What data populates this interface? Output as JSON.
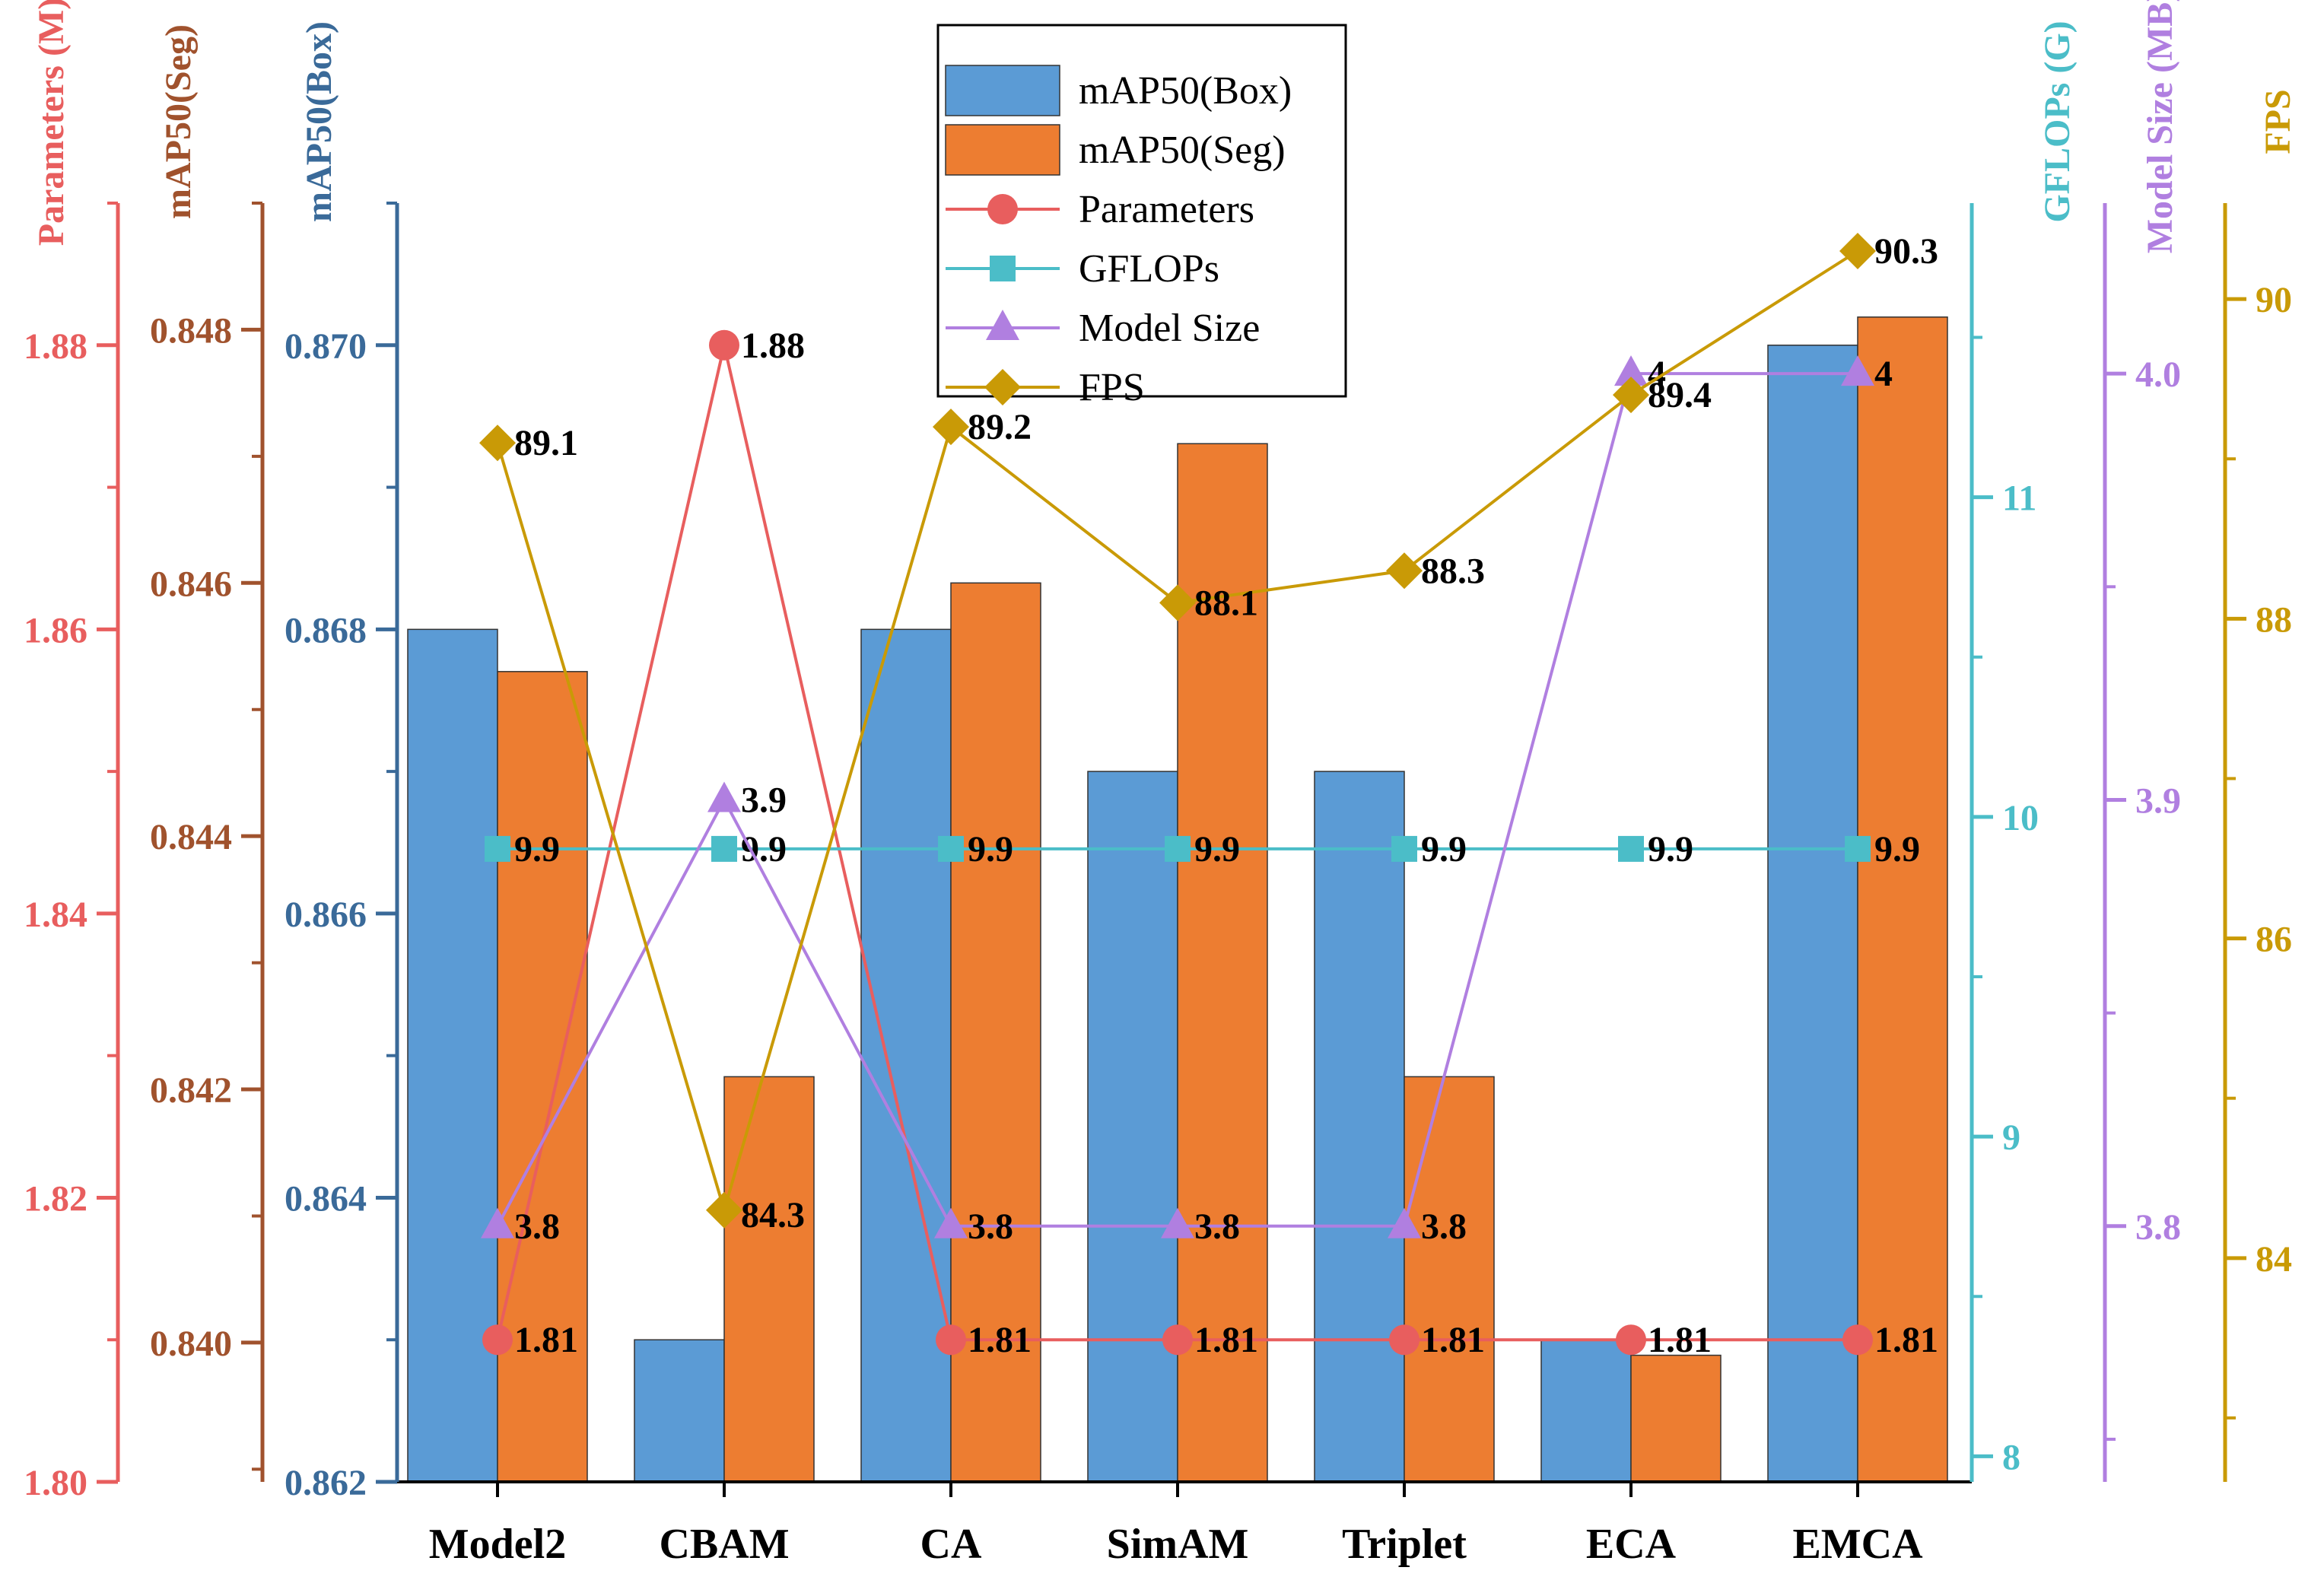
{
  "chart_data": {
    "type": "bar",
    "categories": [
      "Model2",
      "CBAM",
      "CA",
      "SimAM",
      "Triplet",
      "ECA",
      "EMCA"
    ],
    "bar_series": [
      {
        "name": "mAP50(Box)",
        "axis": "box",
        "color": "#5B9BD5",
        "values": [
          0.868,
          0.863,
          0.868,
          0.867,
          0.867,
          0.863,
          0.87
        ]
      },
      {
        "name": "mAP50(Seg)",
        "axis": "seg",
        "color": "#ED7D31",
        "values": [
          0.8453,
          0.8421,
          0.846,
          0.8471,
          0.8421,
          0.8399,
          0.8481
        ]
      }
    ],
    "line_series": [
      {
        "name": "Parameters",
        "axis": "params",
        "color": "#E85E5E",
        "marker": "circle",
        "values": [
          1.81,
          1.88,
          1.81,
          1.81,
          1.81,
          1.81,
          1.81
        ],
        "labels": [
          "1.81",
          "1.88",
          "1.81",
          "1.81",
          "1.81",
          "1.81",
          "1.81"
        ]
      },
      {
        "name": "GFLOPs",
        "axis": "gflops",
        "color": "#4BBDC8",
        "marker": "square",
        "values": [
          9.9,
          9.9,
          9.9,
          9.9,
          9.9,
          9.9,
          9.9
        ],
        "labels": [
          "9.9",
          "9.9",
          "9.9",
          "9.9",
          "9.9",
          "9.9",
          "9.9"
        ]
      },
      {
        "name": "Model Size",
        "axis": "size",
        "color": "#B07FE0",
        "marker": "triangle",
        "values": [
          3.8,
          3.9,
          3.8,
          3.8,
          3.8,
          4.0,
          4.0
        ],
        "labels": [
          "3.8",
          "3.9",
          "3.8",
          "3.8",
          "3.8",
          "4",
          "4"
        ]
      },
      {
        "name": "FPS",
        "axis": "fps",
        "color": "#C99A06",
        "marker": "diamond",
        "values": [
          89.1,
          84.3,
          89.2,
          88.1,
          88.3,
          89.4,
          90.3
        ],
        "labels": [
          "89.1",
          "84.3",
          "89.2",
          "88.1",
          "88.3",
          "89.4",
          "90.3"
        ]
      }
    ],
    "axes": {
      "params": {
        "label": "Parameters (M)",
        "color": "#E85E5E",
        "ylim": [
          1.8,
          1.89
        ],
        "ticks": [
          1.8,
          1.82,
          1.84,
          1.86,
          1.88
        ],
        "tick_labels": [
          "1.80",
          "1.82",
          "1.84",
          "1.86",
          "1.88"
        ],
        "minor_step": 0.01
      },
      "seg": {
        "label": "mAP50(Seg)",
        "color": "#A0522D",
        "ylim": [
          0.8389,
          0.849
        ],
        "ticks": [
          0.84,
          0.842,
          0.844,
          0.846,
          0.848
        ],
        "tick_labels": [
          "0.840",
          "0.842",
          "0.844",
          "0.846",
          "0.848"
        ],
        "minor_step": 0.001
      },
      "box": {
        "label": "mAP50(Box)",
        "color": "#3A6A99",
        "ylim": [
          0.862,
          0.871
        ],
        "ticks": [
          0.862,
          0.864,
          0.866,
          0.868,
          0.87
        ],
        "tick_labels": [
          "0.862",
          "0.864",
          "0.866",
          "0.868",
          "0.870"
        ],
        "minor_step": 0.001
      },
      "gflops": {
        "label": "GFLOPs (G)",
        "color": "#4BBDC8",
        "ylim": [
          7.92,
          11.92
        ],
        "ticks": [
          8,
          9,
          10,
          11
        ],
        "tick_labels": [
          "8",
          "9",
          "10",
          "11"
        ],
        "minor_step": 0.5
      },
      "size": {
        "label": "Model Size (MB)",
        "color": "#B07FE0",
        "ylim": [
          3.74,
          4.04
        ],
        "ticks": [
          3.8,
          3.9,
          4.0
        ],
        "tick_labels": [
          "3.8",
          "3.9",
          "4.0"
        ],
        "minor_step": 0.05
      },
      "fps": {
        "label": "FPS",
        "color": "#C99A06",
        "ylim": [
          82.6,
          90.6
        ],
        "ticks": [
          84,
          86,
          88,
          90
        ],
        "tick_labels": [
          "84",
          "86",
          "88",
          "90"
        ],
        "minor_step": 1
      }
    },
    "legend": {
      "position": "top-center",
      "entries": [
        "mAP50(Box)",
        "mAP50(Seg)",
        "Parameters",
        "GFLOPs",
        "Model Size",
        "FPS"
      ]
    },
    "grid": false
  }
}
